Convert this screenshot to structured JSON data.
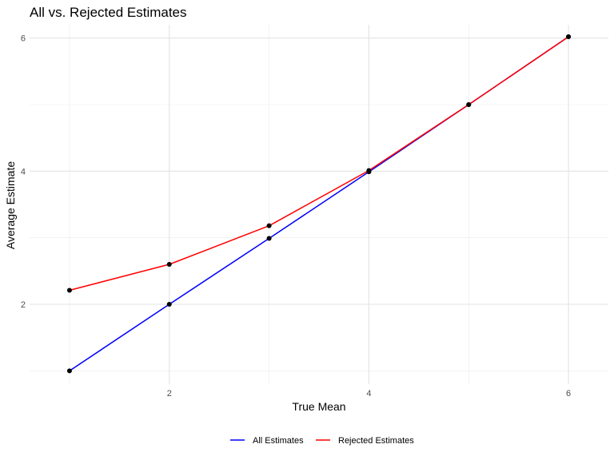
{
  "chart_data": {
    "type": "line",
    "title": "All vs. Rejected Estimates",
    "xlabel": "True Mean",
    "ylabel": "Average Estimate",
    "x": [
      1,
      2,
      3,
      4,
      5,
      6
    ],
    "xlim": [
      0.6,
      6.4
    ],
    "ylim": [
      0.8,
      6.2
    ],
    "xticks": [
      2,
      4,
      6
    ],
    "yticks": [
      2,
      4,
      6
    ],
    "x_minor": [
      1,
      3,
      5
    ],
    "y_minor": [
      1,
      3,
      5
    ],
    "grid": true,
    "legend_position": "bottom",
    "series": [
      {
        "name": "All Estimates",
        "color": "#0000ff",
        "values": [
          1.0,
          2.0,
          2.99,
          3.99,
          5.0,
          6.02
        ]
      },
      {
        "name": "Rejected Estimates",
        "color": "#ff0000",
        "values": [
          2.21,
          2.6,
          3.18,
          4.01,
          5.0,
          6.02
        ]
      }
    ],
    "point_color": "#000000"
  }
}
